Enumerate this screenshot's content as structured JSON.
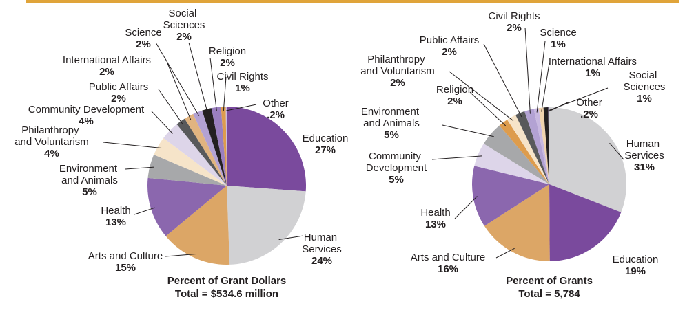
{
  "chart_data": [
    {
      "type": "pie",
      "title": "Percent of Grant Dollars",
      "subtitle": "Total = $534.6 million",
      "categories": [
        "Education",
        "Human Services",
        "Arts and Culture",
        "Health",
        "Environment and Animals",
        "Philanthropy and Voluntarism",
        "Community Development",
        "Public Affairs",
        "International Affairs",
        "Science",
        "Social Sciences",
        "Religion",
        "Civil Rights",
        "Other"
      ],
      "values": [
        27,
        24,
        15,
        13,
        5,
        4,
        4,
        2,
        2,
        2,
        2,
        2,
        1,
        0.2
      ],
      "value_labels": [
        "27%",
        "24%",
        "15%",
        "13%",
        "5%",
        "4%",
        "4%",
        "2%",
        "2%",
        "2%",
        "2%",
        "2%",
        "1%",
        ".2%"
      ],
      "colors": [
        "#7a4a9d",
        "#d1d1d3",
        "#dca666",
        "#8b67ae",
        "#a7a8aa",
        "#f6e4c9",
        "#ddd5e9",
        "#58595b",
        "#e1b480",
        "#b3a2d3",
        "#231f20",
        "#9a7fbf",
        "#dd9c4d",
        "#c8b8e0"
      ]
    },
    {
      "type": "pie",
      "title": "Percent of Grants",
      "subtitle": "Total = 5,784",
      "categories": [
        "Human Services",
        "Education",
        "Arts and Culture",
        "Health",
        "Community Development",
        "Environment and Animals",
        "Religion",
        "Philanthropy and Voluntarism",
        "Public Affairs",
        "Civil Rights",
        "Science",
        "International Affairs",
        "Social Sciences",
        "Other"
      ],
      "values": [
        31,
        19,
        16,
        13,
        5,
        5,
        2,
        2,
        2,
        2,
        1,
        1,
        1,
        0.2
      ],
      "value_labels": [
        "31%",
        "19%",
        "16%",
        "13%",
        "5%",
        "5%",
        "2%",
        "2%",
        "2%",
        "2%",
        "1%",
        "1%",
        "1%",
        ".2%"
      ],
      "colors": [
        "#d1d1d3",
        "#7a4a9d",
        "#dca666",
        "#8b67ae",
        "#ddd5e9",
        "#a7a8aa",
        "#dd9c4d",
        "#f6e4c9",
        "#58595b",
        "#b3a2d3",
        "#c8b8e0",
        "#f0d3ae",
        "#231f20",
        "#9a7fbf"
      ]
    }
  ]
}
